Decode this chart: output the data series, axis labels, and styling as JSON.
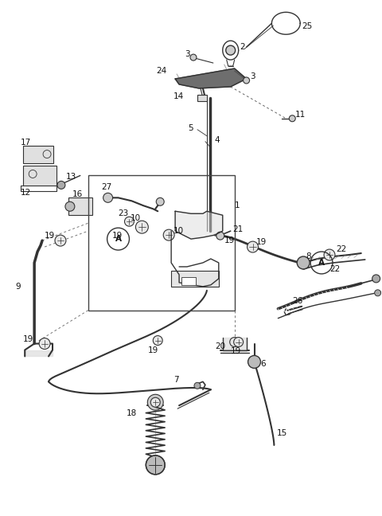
{
  "bg_color": "#ffffff",
  "line_color": "#333333",
  "fig_width": 4.8,
  "fig_height": 6.48,
  "dpi": 100,
  "label_fontsize": 7.5,
  "label_color": "#111111"
}
